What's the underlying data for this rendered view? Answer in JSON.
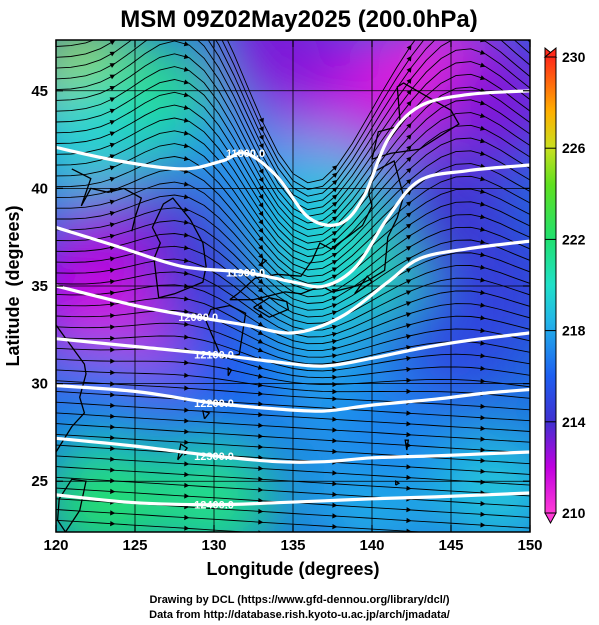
{
  "chart_data": {
    "type": "heatmap",
    "title": "MSM 09Z02May2025 (200.0hPa)",
    "xlabel": "Longitude (degrees)",
    "ylabel": "Latitude  (degrees)",
    "xlim": [
      120,
      150
    ],
    "ylim": [
      22.4,
      47.6
    ],
    "x_ticks": [
      "120",
      "125",
      "130",
      "135",
      "140",
      "145",
      "150"
    ],
    "y_ticks": [
      "25",
      "30",
      "35",
      "40",
      "45"
    ],
    "colorbar": {
      "range": [
        210,
        230
      ],
      "tick_labels": [
        "230",
        "226",
        "222",
        "218",
        "214",
        "210"
      ]
    },
    "contours": [
      {
        "label": "11800.0",
        "points": [
          [
            120,
            42.1
          ],
          [
            124,
            41.4
          ],
          [
            128,
            41.0
          ],
          [
            130.5,
            41.4
          ],
          [
            132,
            41.8
          ],
          [
            134,
            40.6
          ],
          [
            136,
            38.5
          ],
          [
            138,
            38.2
          ],
          [
            139.5,
            39.6
          ],
          [
            141,
            42.5
          ],
          [
            143,
            44.2
          ],
          [
            146,
            44.8
          ],
          [
            150,
            45.0
          ]
        ]
      },
      {
        "label": "11900.0",
        "points": [
          [
            120,
            38.0
          ],
          [
            124,
            37.0
          ],
          [
            128,
            36.0
          ],
          [
            132,
            35.7
          ],
          [
            135,
            35.2
          ],
          [
            137,
            35.0
          ],
          [
            139,
            36.0
          ],
          [
            141,
            38.5
          ],
          [
            143,
            40.4
          ],
          [
            146,
            40.9
          ],
          [
            150,
            41.2
          ]
        ]
      },
      {
        "label": "12000.0",
        "points": [
          [
            120,
            35.0
          ],
          [
            125,
            34.0
          ],
          [
            129,
            33.4
          ],
          [
            132,
            33.0
          ],
          [
            135,
            32.6
          ],
          [
            138,
            33.4
          ],
          [
            141,
            35.2
          ],
          [
            143,
            36.4
          ],
          [
            146,
            36.9
          ],
          [
            150,
            37.3
          ]
        ]
      },
      {
        "label": "12100.0",
        "points": [
          [
            120,
            32.3
          ],
          [
            125,
            31.9
          ],
          [
            130,
            31.5
          ],
          [
            134,
            31.1
          ],
          [
            137,
            30.9
          ],
          [
            140,
            31.3
          ],
          [
            143,
            31.8
          ],
          [
            146,
            32.2
          ],
          [
            150,
            32.6
          ]
        ]
      },
      {
        "label": "12200.0",
        "points": [
          [
            120,
            29.9
          ],
          [
            125,
            29.6
          ],
          [
            130,
            29.0
          ],
          [
            134,
            28.7
          ],
          [
            137,
            28.6
          ],
          [
            140,
            28.9
          ],
          [
            144,
            29.2
          ],
          [
            147,
            29.5
          ],
          [
            150,
            29.7
          ]
        ]
      },
      {
        "label": "12300.0",
        "points": [
          [
            120,
            27.2
          ],
          [
            125,
            26.8
          ],
          [
            130,
            26.3
          ],
          [
            134,
            26.0
          ],
          [
            137,
            26.0
          ],
          [
            140,
            26.2
          ],
          [
            144,
            26.3
          ],
          [
            147,
            26.4
          ],
          [
            150,
            26.5
          ]
        ]
      },
      {
        "label": "12400.0",
        "points": [
          [
            120,
            24.3
          ],
          [
            125,
            23.9
          ],
          [
            130,
            23.8
          ],
          [
            134,
            23.9
          ],
          [
            137,
            24.0
          ],
          [
            140,
            24.1
          ],
          [
            144,
            24.2
          ],
          [
            150,
            24.4
          ]
        ]
      }
    ],
    "temperature_blobs": [
      {
        "lon": 122,
        "lat": 45.5,
        "value": 225.5
      },
      {
        "lon": 126,
        "lat": 44.5,
        "value": 221.5
      },
      {
        "lon": 122,
        "lat": 42.5,
        "value": 219.5
      },
      {
        "lon": 131,
        "lat": 41.0,
        "value": 217.5
      },
      {
        "lon": 141,
        "lat": 45.0,
        "value": 211.0
      },
      {
        "lon": 145,
        "lat": 46.0,
        "value": 210.5
      },
      {
        "lon": 138,
        "lat": 43.5,
        "value": 212.0
      },
      {
        "lon": 134,
        "lat": 47.0,
        "value": 213.0
      },
      {
        "lon": 148,
        "lat": 44.5,
        "value": 213.0
      },
      {
        "lon": 137,
        "lat": 39.5,
        "value": 218.5
      },
      {
        "lon": 140,
        "lat": 36.5,
        "value": 221.0
      },
      {
        "lon": 136,
        "lat": 35.5,
        "value": 219.5
      },
      {
        "lon": 127,
        "lat": 37.5,
        "value": 214.0
      },
      {
        "lon": 123,
        "lat": 37.0,
        "value": 213.0
      },
      {
        "lon": 122,
        "lat": 34.0,
        "value": 212.0
      },
      {
        "lon": 125,
        "lat": 32.5,
        "value": 211.5
      },
      {
        "lon": 130,
        "lat": 34.5,
        "value": 214.5
      },
      {
        "lon": 145,
        "lat": 38.5,
        "value": 214.0
      },
      {
        "lon": 148,
        "lat": 35.0,
        "value": 214.5
      },
      {
        "lon": 145,
        "lat": 32.0,
        "value": 215.0
      },
      {
        "lon": 137,
        "lat": 30.0,
        "value": 218.0
      },
      {
        "lon": 131,
        "lat": 30.0,
        "value": 216.0
      },
      {
        "lon": 123,
        "lat": 29.0,
        "value": 216.5
      },
      {
        "lon": 140,
        "lat": 24.5,
        "value": 218.5
      },
      {
        "lon": 130,
        "lat": 24.0,
        "value": 221.5
      },
      {
        "lon": 123,
        "lat": 24.0,
        "value": 222.0
      },
      {
        "lon": 148,
        "lat": 24.5,
        "value": 219.0
      },
      {
        "lon": 141,
        "lat": 27.5,
        "value": 217.0
      }
    ]
  },
  "credits": {
    "line1": "Drawing by DCL (https://www.gfd-dennou.org/library/dcl/)",
    "line2": "Data from http://database.rish.kyoto-u.ac.jp/arch/jmadata/"
  }
}
